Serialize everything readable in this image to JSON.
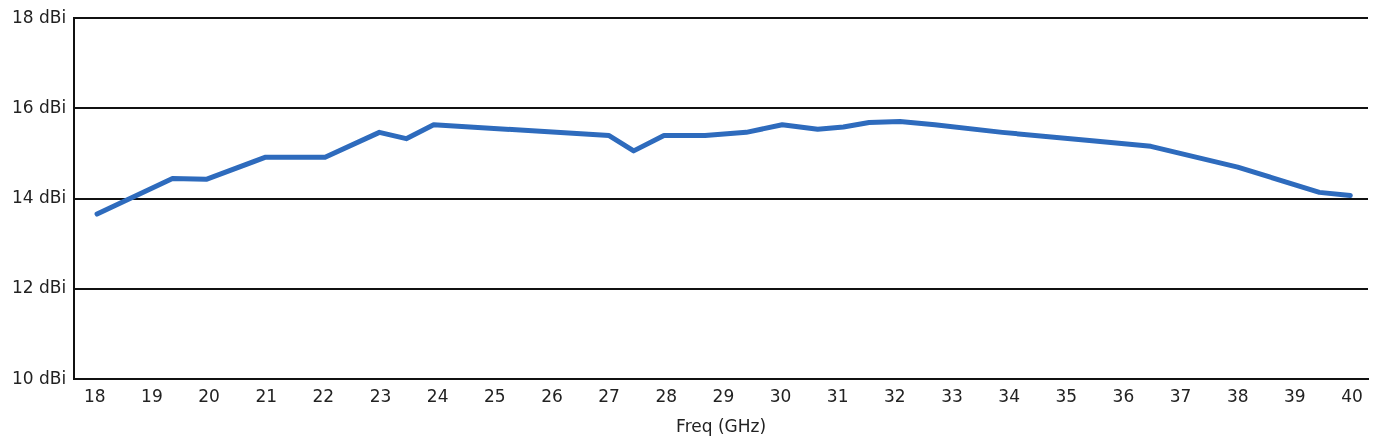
{
  "chart_data": {
    "type": "line",
    "xlabel": "Freq (GHz)",
    "x": [
      18.04,
      19.36,
      19.95,
      20.99,
      22.03,
      22.98,
      23.45,
      23.93,
      27.0,
      27.43,
      27.96,
      28.68,
      29.4,
      30.03,
      30.65,
      31.1,
      31.55,
      32.09,
      32.7,
      33.88,
      35.5,
      36.48,
      38.0,
      39.43,
      39.97
    ],
    "series": [
      {
        "color": "#2e6bbd",
        "values": [
          13.66,
          14.45,
          14.43,
          14.92,
          14.92,
          15.47,
          15.33,
          15.64,
          15.4,
          15.06,
          15.4,
          15.4,
          15.47,
          15.64,
          15.54,
          15.59,
          15.69,
          15.71,
          15.64,
          15.47,
          15.28,
          15.16,
          14.7,
          14.14,
          14.07
        ]
      }
    ],
    "xlim": [
      17.64,
      40.28
    ],
    "ylim": [
      10,
      18
    ],
    "xticks": [
      18,
      19,
      20,
      21,
      22,
      23,
      24,
      25,
      26,
      27,
      28,
      29,
      30,
      31,
      32,
      33,
      34,
      35,
      36,
      37,
      38,
      39,
      40
    ],
    "yticks": [
      {
        "value": 10,
        "label": "10 dBi"
      },
      {
        "value": 12,
        "label": "12 dBi"
      },
      {
        "value": 14,
        "label": "14 dBi"
      },
      {
        "value": 16,
        "label": "16 dBi"
      },
      {
        "value": 18,
        "label": "18 dBi"
      }
    ],
    "grid": "y",
    "legend": false,
    "marker": "none",
    "line_style": "solid"
  }
}
